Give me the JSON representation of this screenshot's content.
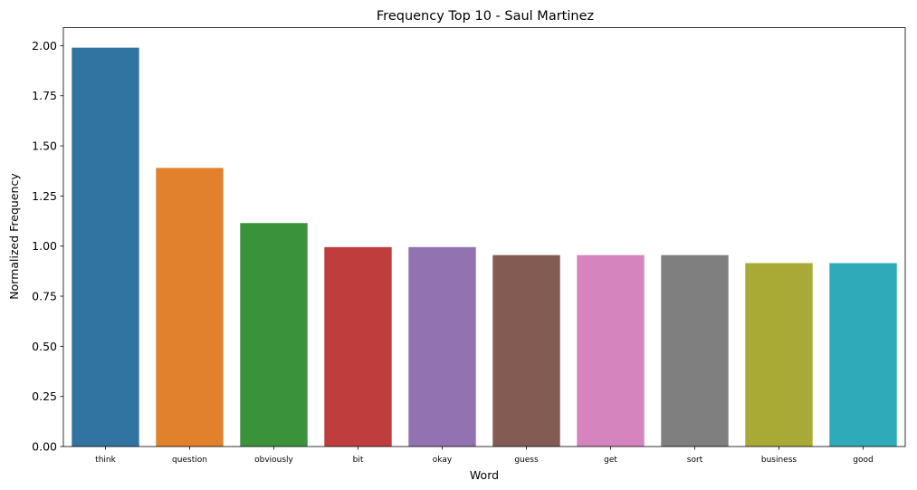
{
  "chart_data": {
    "type": "bar",
    "title": "Frequency Top 10 - Saul Martinez",
    "xlabel": "Word",
    "ylabel": "Normalized Frequency",
    "categories": [
      "think",
      "question",
      "obviously",
      "bit",
      "okay",
      "guess",
      "get",
      "sort",
      "business",
      "good"
    ],
    "values": [
      1.99,
      1.39,
      1.115,
      0.995,
      0.995,
      0.955,
      0.955,
      0.955,
      0.915,
      0.915
    ],
    "colors": [
      "#3274a1",
      "#e1812c",
      "#3a923a",
      "#c03d3e",
      "#9372b2",
      "#845b53",
      "#d684bd",
      "#7f7f7f",
      "#a9aa35",
      "#2eaab8"
    ],
    "ylim": [
      0,
      2.09
    ],
    "yticks": [
      0.0,
      0.25,
      0.5,
      0.75,
      1.0,
      1.25,
      1.5,
      1.75,
      2.0
    ],
    "ytick_labels": [
      "0.00",
      "0.25",
      "0.50",
      "0.75",
      "1.00",
      "1.25",
      "1.50",
      "1.75",
      "2.00"
    ],
    "grid": false,
    "legend": false
  }
}
